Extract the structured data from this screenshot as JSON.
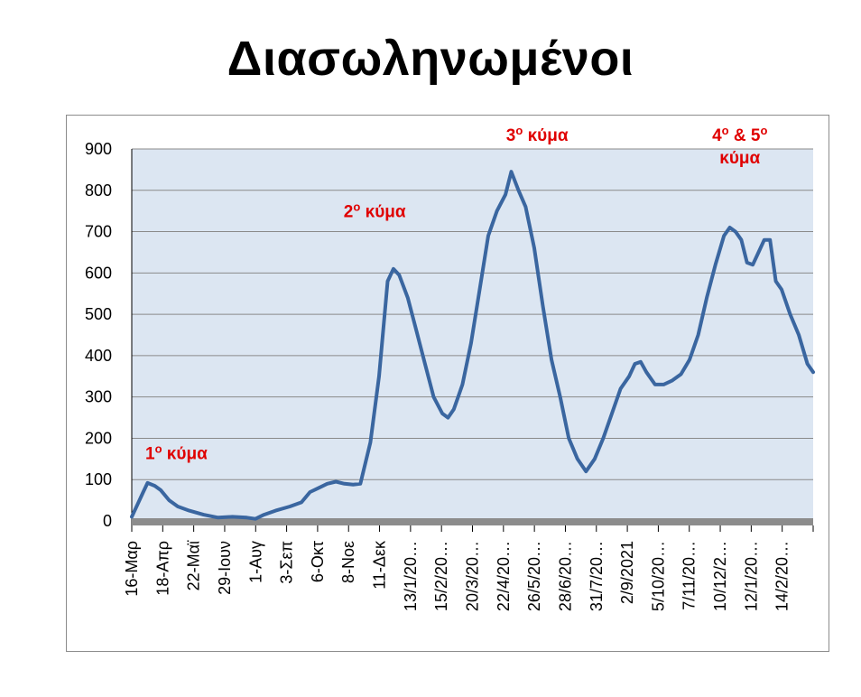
{
  "title": "Διασωληνωμένοι",
  "colors": {
    "line": "#3a66a0",
    "plot_background": "#dce6f2",
    "baseline": "#8c8c8c",
    "annotation": "#e00000"
  },
  "chart_data": {
    "type": "line",
    "title": "Διασωληνωμένοι",
    "xlabel": "",
    "ylabel": "",
    "ylim": [
      0,
      900
    ],
    "yticks": [
      0,
      100,
      200,
      300,
      400,
      500,
      600,
      700,
      800,
      900
    ],
    "grid": true,
    "legend": "none",
    "categories": [
      "16-Μαρ",
      "18-Απρ",
      "22-Μαϊ",
      "29-Ιουν",
      "1-Αυγ",
      "3-Σεπ",
      "6-Οκτ",
      "8-Νοε",
      "11-Δεκ",
      "13/1/20…",
      "15/2/20…",
      "20/3/20…",
      "22/4/20…",
      "26/5/20…",
      "28/6/20…",
      "31/7/20…",
      "2/9/2021",
      "5/10/20…",
      "7/11/20…",
      "10/12/2…",
      "12/1/20…",
      "14/2/20…"
    ],
    "series": [
      {
        "points": [
          [
            0,
            10
          ],
          [
            0.2,
            40
          ],
          [
            0.4,
            70
          ],
          [
            0.55,
            92
          ],
          [
            0.8,
            85
          ],
          [
            1.0,
            75
          ],
          [
            1.3,
            50
          ],
          [
            1.6,
            35
          ],
          [
            2.0,
            25
          ],
          [
            2.5,
            15
          ],
          [
            3.0,
            8
          ],
          [
            3.5,
            10
          ],
          [
            4.0,
            8
          ],
          [
            4.3,
            5
          ],
          [
            4.6,
            15
          ],
          [
            5.0,
            25
          ],
          [
            5.5,
            35
          ],
          [
            5.9,
            45
          ],
          [
            6.2,
            70
          ],
          [
            6.5,
            80
          ],
          [
            6.8,
            90
          ],
          [
            7.1,
            95
          ],
          [
            7.4,
            90
          ],
          [
            7.7,
            88
          ],
          [
            7.95,
            90
          ],
          [
            8.3,
            190
          ],
          [
            8.6,
            350
          ],
          [
            8.9,
            580
          ],
          [
            9.1,
            610
          ],
          [
            9.3,
            595
          ],
          [
            9.6,
            540
          ],
          [
            9.9,
            460
          ],
          [
            10.2,
            380
          ],
          [
            10.5,
            300
          ],
          [
            10.8,
            260
          ],
          [
            11.0,
            250
          ],
          [
            11.2,
            270
          ],
          [
            11.5,
            330
          ],
          [
            11.8,
            430
          ],
          [
            12.1,
            560
          ],
          [
            12.4,
            690
          ],
          [
            12.7,
            750
          ],
          [
            13.0,
            790
          ],
          [
            13.2,
            845
          ],
          [
            13.45,
            800
          ],
          [
            13.7,
            760
          ],
          [
            14.0,
            660
          ],
          [
            14.3,
            520
          ],
          [
            14.6,
            390
          ],
          [
            14.9,
            300
          ],
          [
            15.2,
            200
          ],
          [
            15.5,
            150
          ],
          [
            15.8,
            120
          ],
          [
            16.1,
            150
          ],
          [
            16.4,
            200
          ],
          [
            16.7,
            260
          ],
          [
            17.0,
            320
          ],
          [
            17.3,
            350
          ],
          [
            17.5,
            380
          ],
          [
            17.7,
            385
          ],
          [
            17.9,
            360
          ],
          [
            18.2,
            330
          ],
          [
            18.5,
            330
          ],
          [
            18.8,
            340
          ],
          [
            19.1,
            355
          ],
          [
            19.4,
            390
          ],
          [
            19.7,
            450
          ],
          [
            20.0,
            540
          ],
          [
            20.3,
            620
          ],
          [
            20.6,
            690
          ],
          [
            20.8,
            710
          ],
          [
            21.0,
            700
          ],
          [
            21.2,
            680
          ],
          [
            21.4,
            625
          ],
          [
            21.6,
            620
          ],
          [
            21.8,
            650
          ],
          [
            22.0,
            680
          ],
          [
            22.2,
            680
          ],
          [
            22.4,
            580
          ],
          [
            22.6,
            560
          ],
          [
            22.9,
            500
          ],
          [
            23.2,
            450
          ],
          [
            23.5,
            380
          ],
          [
            23.7,
            360
          ]
        ]
      }
    ],
    "annotations": [
      {
        "text": "1ο κύμα",
        "x": 1.55,
        "y": 150
      },
      {
        "text": "2ο κύμα",
        "x": 8.45,
        "y": 735
      },
      {
        "text": "3ο κύμα",
        "x": 14.1,
        "y": 920
      },
      {
        "text": "4ο & 5ο",
        "x": 21.15,
        "y": 920
      },
      {
        "text": "κύμα",
        "x": 21.15,
        "y": 865
      }
    ]
  }
}
